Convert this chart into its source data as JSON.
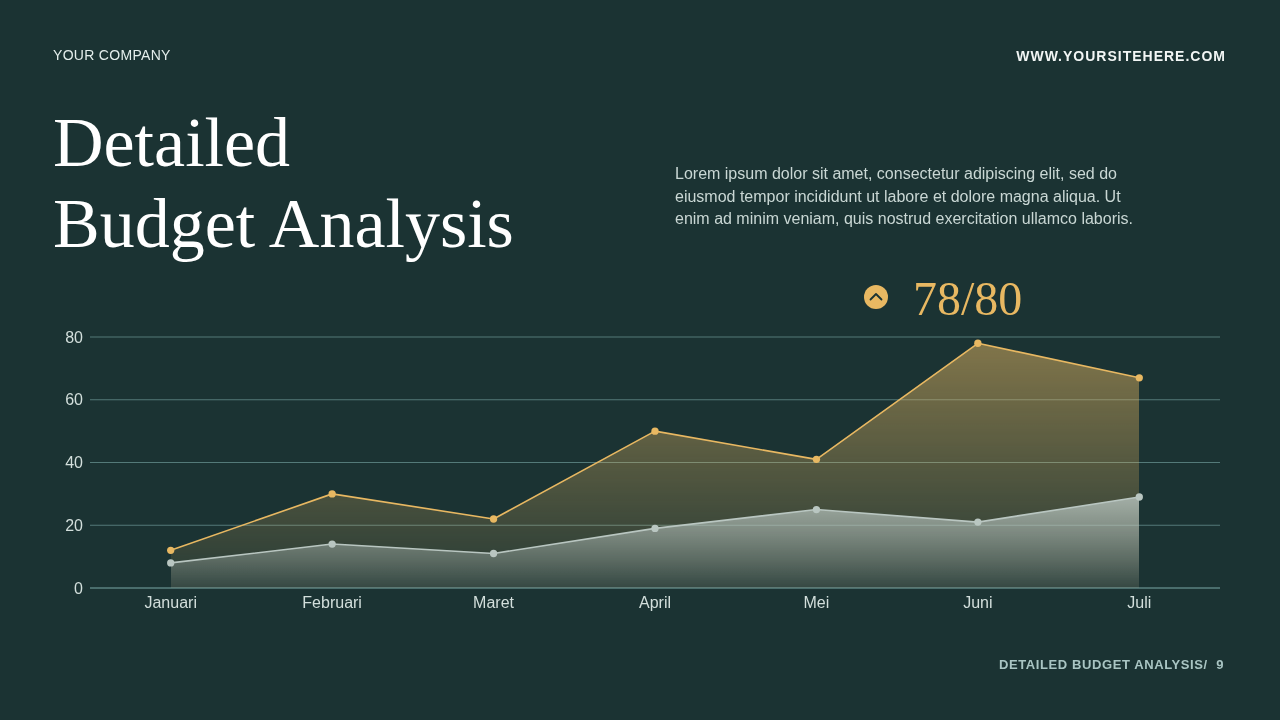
{
  "chart_data": {
    "type": "area",
    "title": "Detailed Budget Analysis",
    "categories": [
      "Januari",
      "Februari",
      "Maret",
      "April",
      "Mei",
      "Juni",
      "Juli"
    ],
    "series": [
      {
        "color": "#e8b862",
        "values": [
          12,
          30,
          22,
          50,
          41,
          78,
          67
        ]
      },
      {
        "color": "#b9c6c1",
        "values": [
          8,
          14,
          11,
          19,
          25,
          21,
          29
        ]
      }
    ],
    "ylim": [
      0,
      80
    ],
    "yticks": [
      0,
      20,
      40,
      60,
      80
    ],
    "grid": "y",
    "marker": "circle",
    "annotations": [
      "YOUR COMPANY",
      "WWW.YOURSITEHERE.COM",
      "Lorem ipsum dolor sit amet, consectetur adipiscing elit, sed do eiusmod tempor incididunt ut labore et dolore magna aliqua. Ut enim ad minim veniam, quis nostrud exercitation ullamco laboris.",
      "78/80",
      "DETAILED BUDGET ANALYSIS/  9"
    ]
  }
}
